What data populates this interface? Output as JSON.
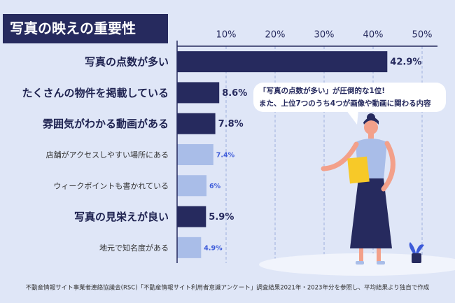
{
  "chart_data": {
    "type": "bar",
    "orientation": "horizontal",
    "title": "写真の映えの重要性",
    "categories": [
      "写真の点数が多い",
      "たくさんの物件を掲載している",
      "雰囲気がわかる動画がある",
      "店舗がアクセスしやすい場所にある",
      "ウィークポイントも書かれている",
      "写真の見栄えが良い",
      "地元で知名度がある"
    ],
    "values": [
      42.9,
      8.6,
      7.8,
      7.4,
      6,
      5.9,
      4.9
    ],
    "value_labels": [
      "42.9%",
      "8.6%",
      "7.8%",
      "7.4%",
      "6%",
      "5.9%",
      "4.9%"
    ],
    "colors": [
      "#262a5e",
      "#262a5e",
      "#262a5e",
      "#a9bde8",
      "#a9bde8",
      "#262a5e",
      "#a9bde8"
    ],
    "bold": [
      true,
      true,
      true,
      false,
      false,
      true,
      false
    ],
    "xlim": [
      0,
      50
    ],
    "xticks": [
      {
        "value": 10,
        "label": "10%"
      },
      {
        "value": 20,
        "label": "20%"
      },
      {
        "value": 30,
        "label": "30%"
      },
      {
        "value": 40,
        "label": "40%"
      },
      {
        "value": 50,
        "label": "50%"
      }
    ],
    "grid": true,
    "annotation": [
      "「写真の点数が多い」が圧倒的な1位!",
      "また、上位7つのうち4つが画像や動画に関わる内容"
    ],
    "source": "不動産情報サイト事業者連絡協議会(RSC)「不動産情報サイト利用者意識アンケート」調査結果2021年・2023年分を参照し、平均結果より独自で作成"
  }
}
